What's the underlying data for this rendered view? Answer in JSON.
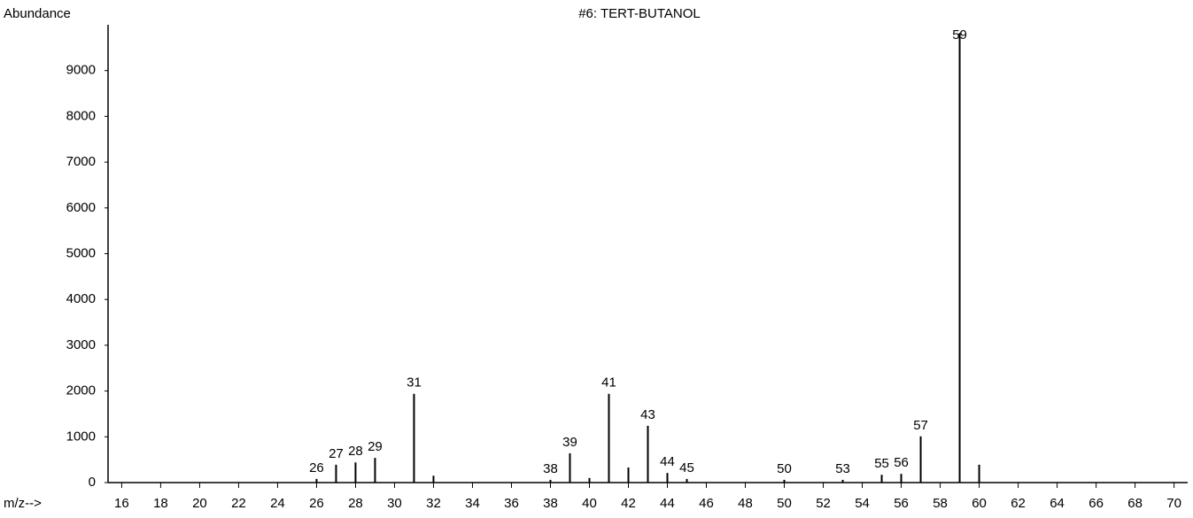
{
  "chart_data": {
    "type": "stick",
    "title": "#6: TERT-BUTANOL",
    "y_label": "Abundance",
    "x_label": "m/z-->",
    "x": [
      26,
      27,
      28,
      29,
      31,
      32,
      38,
      39,
      40,
      41,
      42,
      43,
      44,
      45,
      50,
      53,
      55,
      56,
      57,
      59,
      60
    ],
    "x_labels": [
      "26",
      "27",
      "28",
      "29",
      "31",
      null,
      "38",
      "39",
      null,
      "41",
      null,
      "43",
      "44",
      "45",
      "50",
      "53",
      "55",
      "56",
      "57",
      "59",
      null
    ],
    "values": [
      80,
      390,
      440,
      540,
      1940,
      150,
      60,
      640,
      100,
      1940,
      330,
      1240,
      210,
      80,
      60,
      60,
      170,
      190,
      1010,
      9820,
      390
    ],
    "color": "#000000",
    "xlim": [
      15.3,
      70.7
    ],
    "xticks": [
      16,
      18,
      20,
      22,
      24,
      26,
      28,
      30,
      32,
      34,
      36,
      38,
      40,
      42,
      44,
      46,
      48,
      50,
      52,
      54,
      56,
      58,
      60,
      62,
      64,
      66,
      68,
      70
    ],
    "ylim": [
      0,
      10000
    ],
    "yticks": [
      0,
      1000,
      2000,
      3000,
      4000,
      5000,
      6000,
      7000,
      8000,
      9000
    ]
  }
}
